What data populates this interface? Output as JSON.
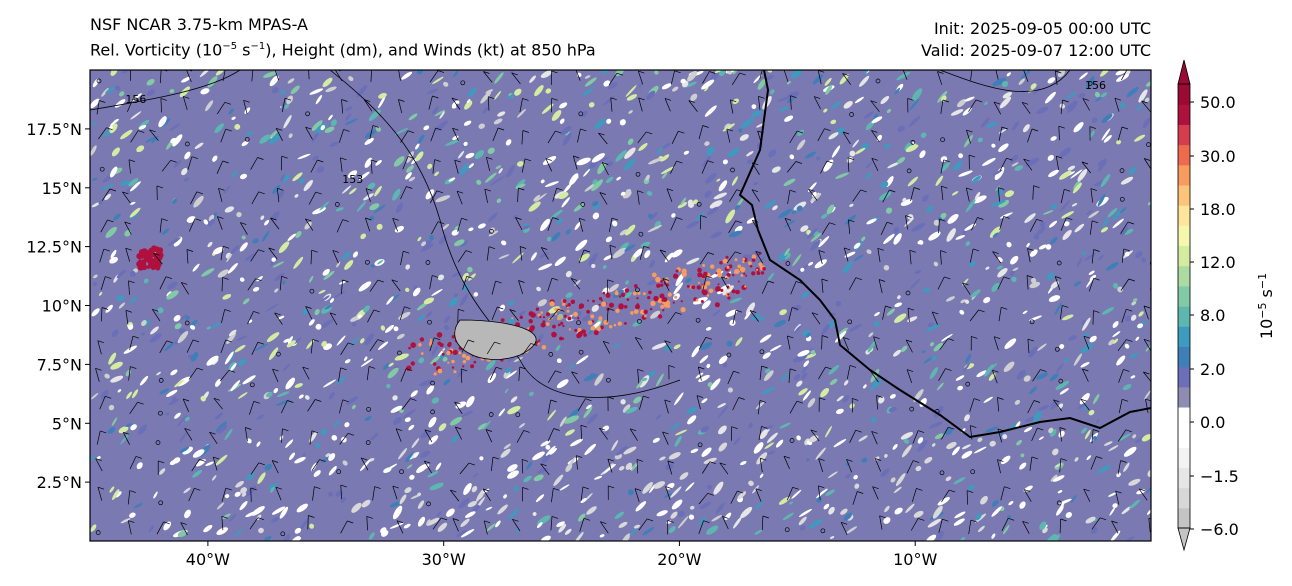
{
  "header": {
    "model": "NSF NCAR 3.75-km MPAS-A",
    "field_prefix": "Rel. Vorticity (10",
    "field_exp1": "−5",
    "field_mid": " s",
    "field_exp2": "−1",
    "field_suffix": "), Height (dm), and Winds (kt) at 850 hPa",
    "init": "Init: 2025-09-05 00:00 UTC",
    "valid": "Valid: 2025-09-07 12:00 UTC"
  },
  "axes": {
    "lat_ticks": [
      {
        "lat": 17.5,
        "label": "17.5°N"
      },
      {
        "lat": 15,
        "label": "15°N"
      },
      {
        "lat": 12.5,
        "label": "12.5°N"
      },
      {
        "lat": 10,
        "label": "10°N"
      },
      {
        "lat": 7.5,
        "label": "7.5°N"
      },
      {
        "lat": 5,
        "label": "5°N"
      },
      {
        "lat": 2.5,
        "label": "2.5°N"
      }
    ],
    "lon_ticks": [
      {
        "lon": -40,
        "label": "40°W"
      },
      {
        "lon": -30,
        "label": "30°W"
      },
      {
        "lon": -20,
        "label": "20°W"
      },
      {
        "lon": -10,
        "label": "10°W"
      }
    ],
    "lon_range": [
      -45,
      0
    ],
    "lat_range": [
      0,
      20
    ]
  },
  "contours": {
    "height_labels": [
      {
        "text": "156",
        "lon": -43.5,
        "lat": 18.6
      },
      {
        "text": "156",
        "lon": -2.8,
        "lat": 19.2
      },
      {
        "text": "153",
        "lon": -34.3,
        "lat": 15.2
      }
    ]
  },
  "colorbar": {
    "label_base": "10",
    "label_exp": "−5",
    "label_unit": " s",
    "label_exp2": "−1",
    "ticks": [
      "50.0",
      "30.0",
      "18.0",
      "12.0",
      "8.0",
      "2.0",
      "0.0",
      "−1.5",
      "−6.0"
    ],
    "colors": [
      "#c4c4c4",
      "#d7d7d7",
      "#e6e6e6",
      "#f3f3f3",
      "#ffffff",
      "#ffffff",
      "#8e8cb0",
      "#6a6fb8",
      "#3f7fb8",
      "#3d9bbf",
      "#5db7b0",
      "#82caa5",
      "#abdba3",
      "#d4eca2",
      "#f4f7ad",
      "#fde59a",
      "#fcc37a",
      "#f99a5f",
      "#ec6b4c",
      "#d43d4f",
      "#b0103e",
      "#9b0a35"
    ]
  }
}
